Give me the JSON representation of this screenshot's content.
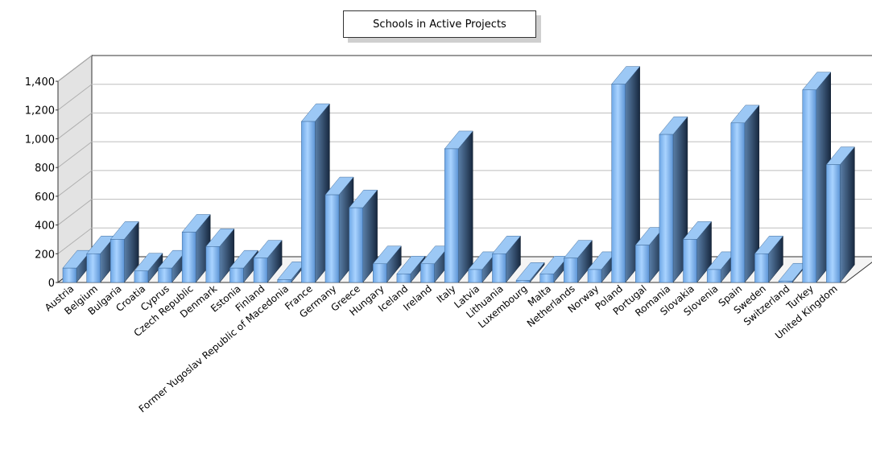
{
  "chart_data": {
    "type": "bar",
    "title": "Schools in Active Projects",
    "xlabel": "",
    "ylabel": "",
    "ylim": [
      0,
      1400
    ],
    "yticks": [
      0,
      200,
      400,
      600,
      800,
      1000,
      1200,
      1400
    ],
    "ytick_labels": [
      "0",
      "200",
      "400",
      "600",
      "800",
      "1,000",
      "1,200",
      "1,400"
    ],
    "grid": true,
    "style": "3d",
    "categories": [
      "Austria",
      "Belgium",
      "Bulgaria",
      "Croatia",
      "Cyprus",
      "Czech Republic",
      "Denmark",
      "Estonia",
      "Finland",
      "Former Yugoslav Republic of Macedonia",
      "France",
      "Germany",
      "Greece",
      "Hungary",
      "Iceland",
      "Ireland",
      "Italy",
      "Latvia",
      "Lithuania",
      "Luxembourg",
      "Malta",
      "Netherlands",
      "Norway",
      "Poland",
      "Portugal",
      "Romania",
      "Slovakia",
      "Slovenia",
      "Spain",
      "Sweden",
      "Switzerland",
      "Turkey",
      "United Kingdom"
    ],
    "values": [
      100,
      200,
      300,
      80,
      100,
      350,
      250,
      100,
      170,
      20,
      1120,
      610,
      520,
      130,
      60,
      130,
      930,
      90,
      200,
      15,
      60,
      170,
      90,
      1380,
      260,
      1030,
      300,
      90,
      1110,
      200,
      10,
      1340,
      820
    ],
    "colors": {
      "bar_front_top": "#a9d3ff",
      "bar_front_bottom": "#5d95d6",
      "bar_side_light": "#4a6d93",
      "bar_side_dark": "#17283f",
      "bar_top": "#9cc8f5",
      "wall": "#e3e3e3",
      "grid": "#bdbdbd"
    }
  }
}
